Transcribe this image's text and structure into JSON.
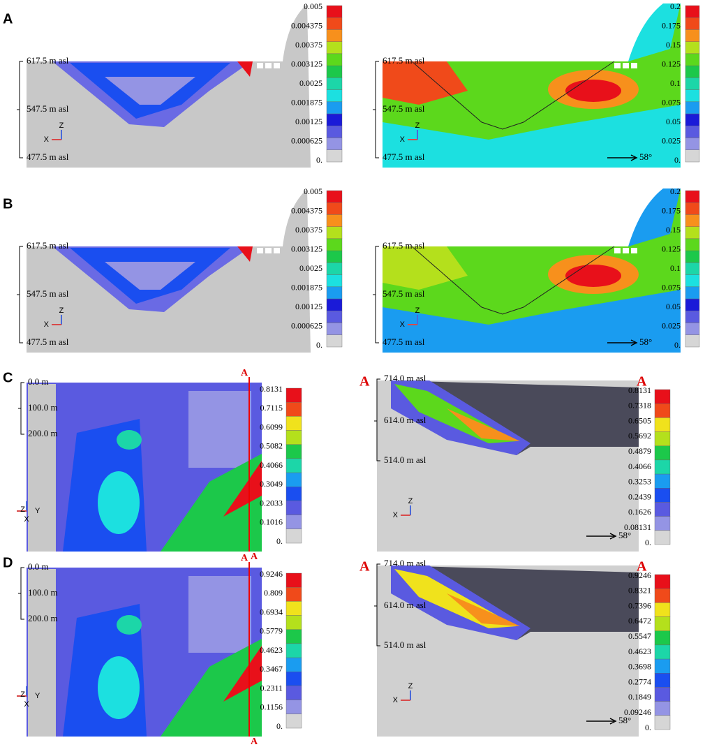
{
  "panels": [
    {
      "label": "A",
      "plots": [
        {
          "elevations": [
            "617.5 m asl",
            "547.5 m asl",
            "477.5 m asl"
          ],
          "axes": [
            "Z",
            "X"
          ],
          "colorbar": [
            "0.005",
            "0.004375",
            "0.00375",
            "0.003125",
            "0.0025",
            "0.001875",
            "0.00125",
            "0.000625",
            "0."
          ]
        },
        {
          "elevations": [
            "617.5 m asl",
            "547.5 m asl",
            "477.5 m asl"
          ],
          "axes": [
            "Z",
            "X"
          ],
          "direction": "58°",
          "colorbar": [
            "0.2",
            "0.175",
            "0.15",
            "0.125",
            "0.1",
            "0.075",
            "0.05",
            "0.025",
            "0."
          ]
        }
      ]
    },
    {
      "label": "B",
      "plots": [
        {
          "elevations": [
            "617.5 m asl",
            "547.5 m asl",
            "477.5 m asl"
          ],
          "axes": [
            "Z",
            "X"
          ],
          "colorbar": [
            "0.005",
            "0.004375",
            "0.00375",
            "0.003125",
            "0.0025",
            "0.001875",
            "0.00125",
            "0.000625",
            "0."
          ]
        },
        {
          "elevations": [
            "617.5 m asl",
            "547.5 m asl",
            "477.5 m asl"
          ],
          "axes": [
            "Z",
            "X"
          ],
          "direction": "58°",
          "colorbar": [
            "0.2",
            "0.175",
            "0.15",
            "0.125",
            "0.1",
            "0.075",
            "0.05",
            "0.025",
            "0."
          ]
        }
      ]
    },
    {
      "label": "C",
      "plots": [
        {
          "elevations": [
            "0.0 m",
            "100.0 m",
            "200.0 m"
          ],
          "axes": [
            "Z",
            "Y",
            "X"
          ],
          "section": [
            "A",
            "A"
          ],
          "colorbar": [
            "0.8131",
            "0.7115",
            "0.6099",
            "0.5082",
            "0.4066",
            "0.3049",
            "0.2033",
            "0.1016",
            "0."
          ]
        },
        {
          "elevations": [
            "714.0 m asl",
            "614.0 m asl",
            "514.0 m asl"
          ],
          "axes": [
            "Z",
            "X"
          ],
          "direction": "58°",
          "section": [
            "A",
            "A"
          ],
          "colorbar": [
            "0.8131",
            "0.7318",
            "0.6505",
            "0.5692",
            "0.4879",
            "0.4066",
            "0.3253",
            "0.2439",
            "0.1626",
            "0.08131",
            "0."
          ]
        }
      ]
    },
    {
      "label": "D",
      "plots": [
        {
          "elevations": [
            "0.0 m",
            "100.0 m",
            "200.0 m"
          ],
          "axes": [
            "Z",
            "Y",
            "X"
          ],
          "section": [
            "A",
            "A"
          ],
          "colorbar": [
            "0.9246",
            "0.809",
            "0.6934",
            "0.5779",
            "0.4623",
            "0.3467",
            "0.2311",
            "0.1156",
            "0."
          ]
        },
        {
          "elevations": [
            "714.0 m asl",
            "614.0 m asl",
            "514.0 m asl"
          ],
          "axes": [
            "Z",
            "X"
          ],
          "direction": "58°",
          "section": [
            "A",
            "A"
          ],
          "colorbar": [
            "0.9246",
            "0.8321",
            "0.7396",
            "0.6472",
            "0.5547",
            "0.4623",
            "0.3698",
            "0.2774",
            "0.1849",
            "0.09246",
            "0."
          ]
        }
      ]
    }
  ]
}
